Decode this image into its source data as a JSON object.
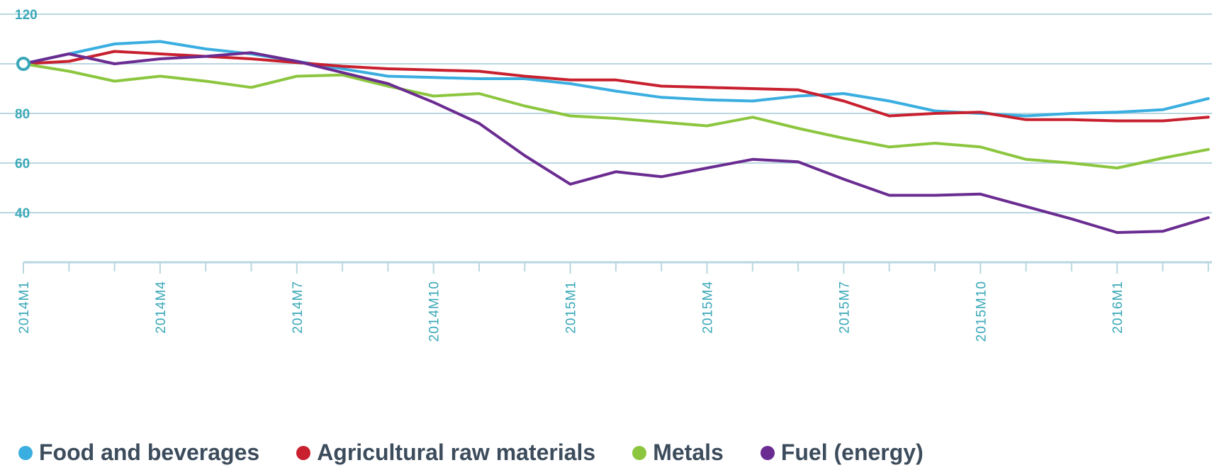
{
  "chart_data": {
    "type": "line",
    "title": "",
    "xlabel": "",
    "ylabel": "",
    "categories": [
      "2014M1",
      "2014M2",
      "2014M3",
      "2014M4",
      "2014M5",
      "2014M6",
      "2014M7",
      "2014M8",
      "2014M9",
      "2014M10",
      "2014M11",
      "2014M12",
      "2015M1",
      "2015M2",
      "2015M3",
      "2015M4",
      "2015M5",
      "2015M6",
      "2015M7",
      "2015M8",
      "2015M9",
      "2015M10",
      "2015M11",
      "2015M12",
      "2016M1",
      "2016M2",
      "2016M3"
    ],
    "x_tick_labels": [
      "2014M1",
      "2014M4",
      "2014M7",
      "2014M10",
      "2015M1",
      "2015M4",
      "2015M7",
      "2015M10",
      "2016M1"
    ],
    "y_ticks": [
      40,
      60,
      80,
      120
    ],
    "ylim": [
      20,
      120
    ],
    "grid": true,
    "legend_position": "bottom",
    "series": [
      {
        "name": "Food and beverages",
        "color": "#3aaee0",
        "values": [
          100,
          104,
          108,
          109,
          106,
          104,
          101,
          98,
          95,
          94.5,
          94,
          94,
          92,
          89,
          86.5,
          85.5,
          85,
          87,
          88,
          85,
          81,
          80,
          79,
          80,
          80.5,
          81.5,
          86
        ]
      },
      {
        "name": "Agricultural raw materials",
        "color": "#c8202f",
        "values": [
          100,
          101,
          105,
          104,
          103,
          102,
          100.5,
          99,
          98,
          97.5,
          97,
          95,
          93.5,
          93.5,
          91,
          90.5,
          90,
          89.5,
          85,
          79,
          80,
          80.5,
          77.5,
          77.5,
          77,
          77,
          78.5
        ]
      },
      {
        "name": "Metals",
        "color": "#8cc63f",
        "values": [
          100,
          97,
          93,
          95,
          93,
          90.5,
          95,
          95.5,
          91,
          87,
          88,
          83,
          79,
          78,
          76.5,
          75,
          78.5,
          74,
          70,
          66.5,
          68,
          66.5,
          61.5,
          60,
          58,
          62,
          65.5
        ]
      },
      {
        "name": "Fuel (energy)",
        "color": "#6a2c91",
        "values": [
          100,
          104,
          100,
          102,
          103,
          104.5,
          101,
          96.5,
          92,
          84.5,
          76,
          63,
          51.5,
          56.5,
          54.5,
          58,
          61.5,
          60.5,
          53.5,
          47,
          47,
          47.5,
          42.5,
          37.5,
          32,
          32.5,
          38
        ]
      }
    ]
  }
}
